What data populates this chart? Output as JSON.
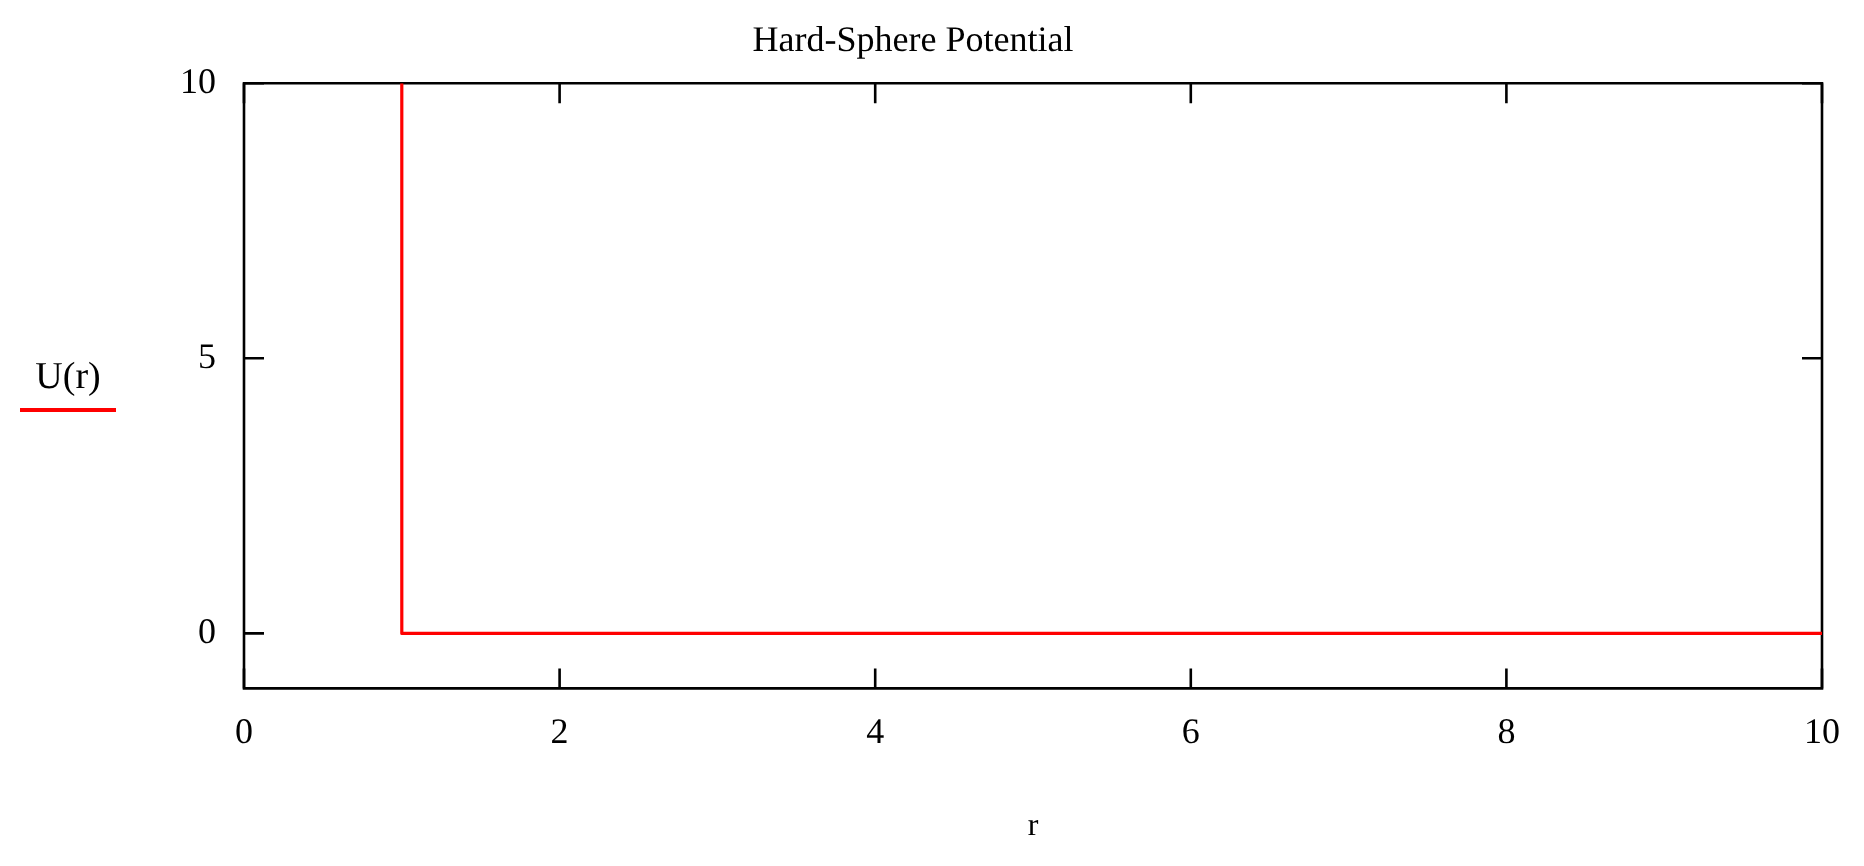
{
  "chart_data": {
    "type": "step",
    "title": "Hard-Sphere Potential",
    "xlabel": "r",
    "x": [
      1,
      10
    ],
    "series": [
      {
        "name": "U(r)",
        "color": "#ff0000",
        "values": [
          10,
          0
        ]
      }
    ],
    "xlim": [
      0,
      10
    ],
    "xticks": [
      0,
      2,
      4,
      6,
      8,
      10
    ],
    "ylim": [
      -1,
      10
    ],
    "yticks": [
      0,
      5,
      10
    ],
    "legend": "left"
  }
}
